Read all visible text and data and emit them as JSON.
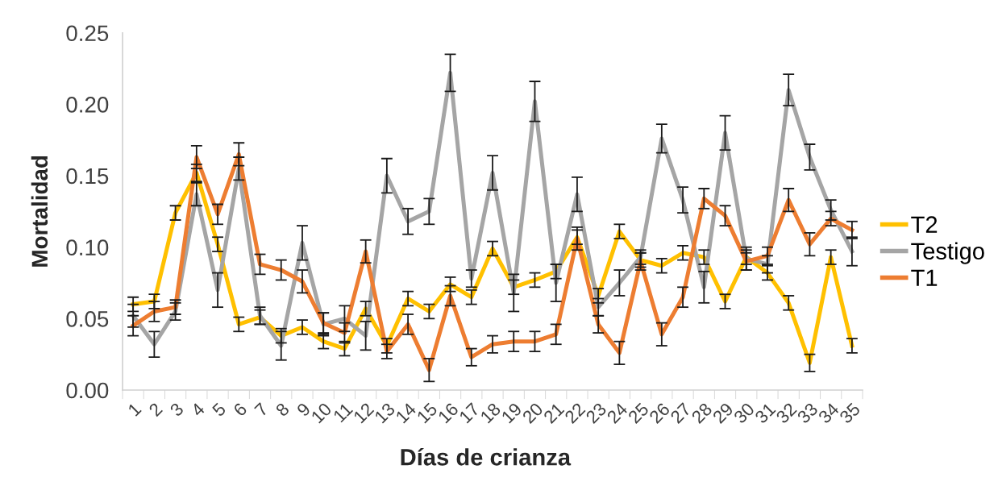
{
  "chart_data": {
    "type": "line",
    "xlabel": "Días de crianza",
    "ylabel": "Mortalidad",
    "categories": [
      "1",
      "2",
      "3",
      "4",
      "5",
      "6",
      "7",
      "8",
      "9",
      "10",
      "11",
      "12",
      "13",
      "14",
      "15",
      "16",
      "17",
      "18",
      "19",
      "20",
      "21",
      "22",
      "23",
      "24",
      "25",
      "26",
      "27",
      "28",
      "29",
      "30",
      "31",
      "32",
      "33",
      "34",
      "35"
    ],
    "series": [
      {
        "name": "T2",
        "color": "#ffc000",
        "values": [
          0.06,
          0.062,
          0.124,
          0.152,
          0.102,
          0.046,
          0.051,
          0.038,
          0.044,
          0.034,
          0.029,
          0.057,
          0.031,
          0.064,
          0.055,
          0.074,
          0.065,
          0.099,
          0.072,
          0.077,
          0.083,
          0.107,
          0.066,
          0.111,
          0.091,
          0.087,
          0.096,
          0.093,
          0.062,
          0.093,
          0.082,
          0.061,
          0.019,
          0.093,
          0.031
        ],
        "errors": [
          0.005,
          0.005,
          0.005,
          0.006,
          0.005,
          0.005,
          0.005,
          0.005,
          0.005,
          0.005,
          0.005,
          0.005,
          0.005,
          0.005,
          0.005,
          0.005,
          0.005,
          0.005,
          0.005,
          0.005,
          0.005,
          0.005,
          0.005,
          0.005,
          0.005,
          0.005,
          0.005,
          0.005,
          0.005,
          0.005,
          0.005,
          0.005,
          0.006,
          0.005,
          0.005
        ]
      },
      {
        "name": "Testigo",
        "color": "#a5a5a5",
        "values": [
          0.052,
          0.032,
          0.055,
          0.137,
          0.07,
          0.155,
          0.052,
          0.031,
          0.103,
          0.046,
          0.05,
          0.038,
          0.15,
          0.118,
          0.125,
          0.222,
          0.078,
          0.152,
          0.068,
          0.202,
          0.075,
          0.137,
          0.058,
          0.075,
          0.093,
          0.176,
          0.133,
          0.072,
          0.18,
          0.092,
          0.088,
          0.21,
          0.163,
          0.126,
          0.097
        ],
        "errors": [
          0.008,
          0.009,
          0.006,
          0.008,
          0.012,
          0.008,
          0.006,
          0.01,
          0.012,
          0.008,
          0.009,
          0.01,
          0.012,
          0.009,
          0.009,
          0.013,
          0.006,
          0.012,
          0.013,
          0.014,
          0.013,
          0.012,
          0.006,
          0.009,
          0.005,
          0.01,
          0.009,
          0.011,
          0.012,
          0.008,
          0.006,
          0.011,
          0.009,
          0.007,
          0.01
        ]
      },
      {
        "name": "T1",
        "color": "#ed7d31",
        "values": [
          0.045,
          0.055,
          0.058,
          0.163,
          0.123,
          0.165,
          0.088,
          0.084,
          0.076,
          0.047,
          0.04,
          0.097,
          0.027,
          0.046,
          0.014,
          0.066,
          0.023,
          0.032,
          0.034,
          0.034,
          0.039,
          0.106,
          0.046,
          0.026,
          0.09,
          0.039,
          0.065,
          0.134,
          0.122,
          0.09,
          0.094,
          0.133,
          0.102,
          0.12,
          0.112
        ],
        "errors": [
          0.007,
          0.007,
          0.005,
          0.008,
          0.007,
          0.008,
          0.007,
          0.007,
          0.008,
          0.007,
          0.007,
          0.008,
          0.005,
          0.007,
          0.008,
          0.007,
          0.006,
          0.006,
          0.007,
          0.007,
          0.007,
          0.008,
          0.006,
          0.008,
          0.006,
          0.008,
          0.007,
          0.007,
          0.007,
          0.006,
          0.006,
          0.008,
          0.008,
          0.005,
          0.006
        ]
      }
    ],
    "ylim": [
      0,
      0.25
    ],
    "yticks": [
      {
        "value": 0,
        "label": "0.00"
      },
      {
        "value": 0.05,
        "label": "0.05"
      },
      {
        "value": 0.1,
        "label": "0.10"
      },
      {
        "value": 0.15,
        "label": "0.15"
      },
      {
        "value": 0.2,
        "label": "0.20"
      },
      {
        "value": 0.25,
        "label": "0.25"
      }
    ],
    "legend": "right",
    "marker": "none",
    "line_style": "solid"
  }
}
